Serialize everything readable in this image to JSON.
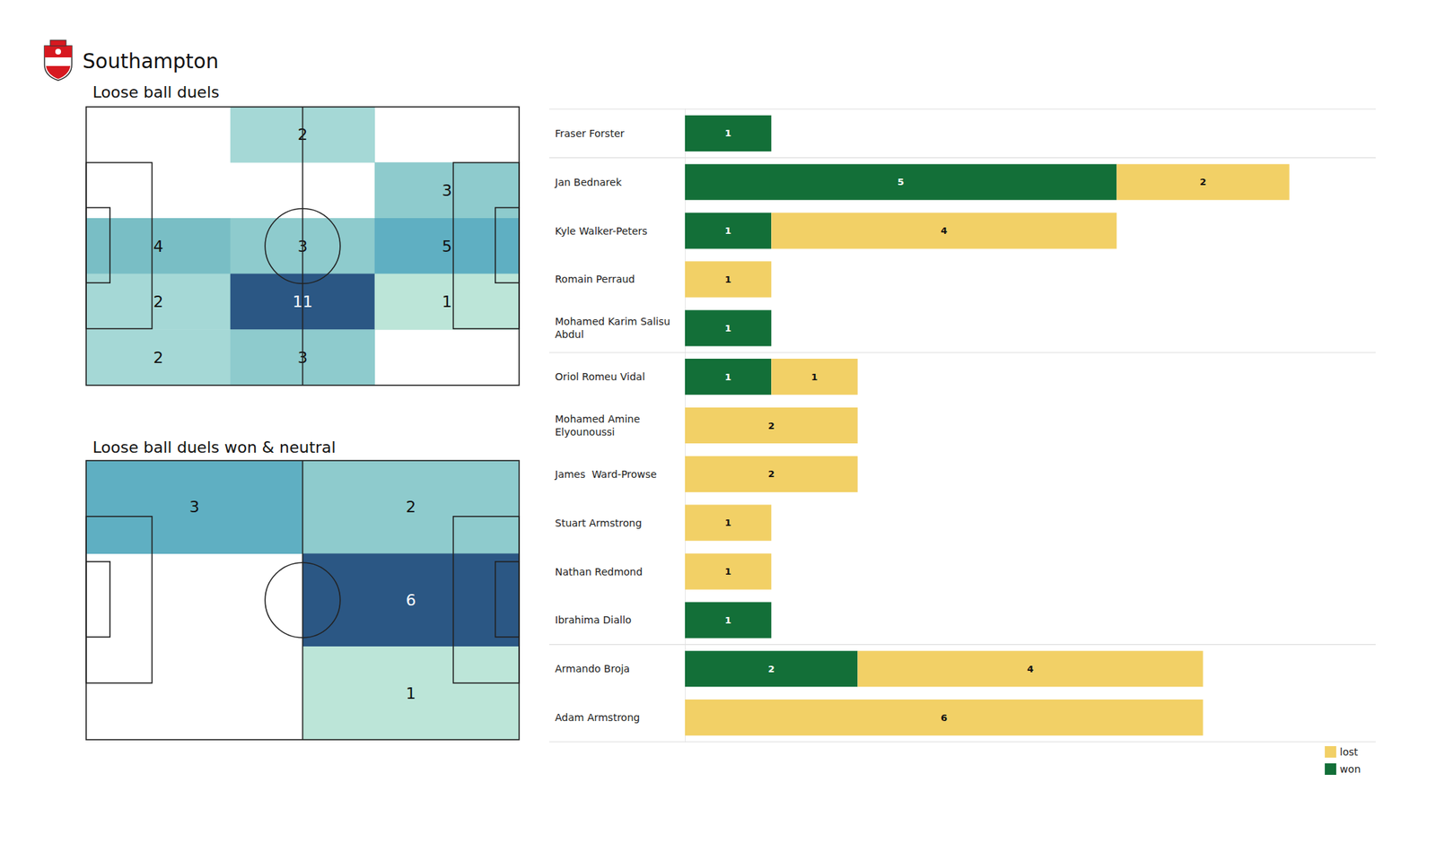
{
  "title": "Southampton",
  "chart_data": [
    {
      "type": "heatmap",
      "title": "Loose ball duels",
      "cells": [
        [
          null,
          2,
          null
        ],
        [
          null,
          null,
          3
        ],
        [
          4,
          3,
          5
        ],
        [
          2,
          11,
          1
        ],
        [
          2,
          3,
          null
        ]
      ],
      "data_labels": true,
      "tick_labels": false
    },
    {
      "type": "heatmap",
      "title": "Loose ball duels won & neutral",
      "cells": [
        [
          3,
          2
        ],
        [
          null,
          6
        ],
        [
          null,
          1
        ]
      ],
      "data_labels": true,
      "tick_labels": false
    },
    {
      "type": "bar",
      "orientation": "horizontal",
      "stacked": true,
      "categories": [
        "Fraser Forster",
        "Jan Bednarek",
        "Kyle Walker-Peters",
        "Romain Perraud",
        "Mohamed Karim Salisu Abdul",
        "Oriol Romeu Vidal",
        "Mohamed Amine Elyounoussi",
        "James  Ward-Prowse",
        "Stuart Armstrong",
        "Nathan Redmond",
        "Ibrahima Diallo",
        "Armando Broja",
        "Adam Armstrong"
      ],
      "series": [
        {
          "name": "won",
          "color": "#136f38",
          "values": [
            1,
            5,
            1,
            null,
            1,
            1,
            null,
            null,
            null,
            null,
            1,
            2,
            null
          ]
        },
        {
          "name": "lost",
          "color": "#f2d066",
          "values": [
            null,
            2,
            4,
            1,
            null,
            1,
            2,
            2,
            1,
            1,
            null,
            4,
            6
          ]
        }
      ],
      "xlim": [
        0,
        8
      ],
      "legend": "lower right",
      "data_labels": true,
      "tick_labels": "y"
    }
  ]
}
